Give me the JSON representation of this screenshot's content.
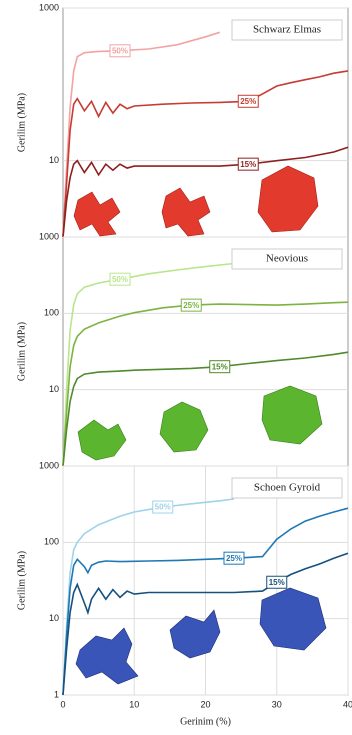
{
  "chart_data": [
    {
      "type": "line",
      "title": "Schwarz Elmas",
      "ylabel": "Gerilim (MPa)",
      "log_y": true,
      "grid": true,
      "xlim": [
        0,
        40
      ],
      "ylim": [
        1,
        1000
      ],
      "yticks": [
        10,
        1000
      ],
      "series": [
        {
          "name": "50%",
          "color": "#f2a3a3",
          "x": [
            0,
            0.5,
            1,
            1.5,
            2,
            3,
            5,
            8,
            12,
            16,
            20,
            22
          ],
          "values": [
            1,
            8,
            50,
            150,
            230,
            260,
            270,
            275,
            290,
            330,
            420,
            480
          ]
        },
        {
          "name": "25%",
          "color": "#c63b32",
          "x": [
            0,
            0.5,
            1,
            1.5,
            2,
            3,
            4,
            5,
            6,
            7,
            8,
            9,
            10,
            14,
            18,
            22,
            26,
            28,
            30,
            32,
            34,
            36,
            38,
            40
          ],
          "values": [
            1,
            5,
            25,
            55,
            65,
            45,
            60,
            38,
            58,
            42,
            55,
            48,
            52,
            55,
            57,
            58,
            60,
            75,
            95,
            105,
            115,
            125,
            140,
            150
          ]
        },
        {
          "name": "15%",
          "color": "#8e1f1f",
          "x": [
            0,
            0.5,
            1,
            1.5,
            2,
            3,
            4,
            5,
            6,
            7,
            8,
            9,
            10,
            14,
            18,
            22,
            26,
            30,
            34,
            38,
            40
          ],
          "values": [
            1,
            3,
            6,
            9,
            10,
            7,
            9.5,
            6.5,
            9,
            7.5,
            9,
            8,
            8.5,
            8.5,
            8.5,
            8.5,
            9,
            10,
            11,
            13,
            15
          ]
        }
      ]
    },
    {
      "type": "line",
      "title": "Neovious",
      "ylabel": "Gerilim (MPa)",
      "log_y": true,
      "grid": true,
      "xlim": [
        0,
        40
      ],
      "ylim": [
        1,
        1000
      ],
      "yticks": [
        10,
        100,
        1000
      ],
      "series": [
        {
          "name": "50%",
          "color": "#b9e58c",
          "x": [
            0,
            0.5,
            1,
            1.5,
            2,
            3,
            5,
            8,
            12,
            16,
            20,
            24
          ],
          "values": [
            1,
            10,
            60,
            130,
            180,
            220,
            250,
            280,
            330,
            370,
            410,
            450
          ]
        },
        {
          "name": "25%",
          "color": "#7cb342",
          "x": [
            0,
            0.5,
            1,
            1.5,
            2,
            3,
            5,
            8,
            10,
            14,
            18,
            22,
            26,
            30,
            34,
            38,
            40
          ],
          "values": [
            1,
            5,
            20,
            38,
            50,
            62,
            75,
            92,
            102,
            118,
            128,
            132,
            130,
            128,
            132,
            138,
            140
          ]
        },
        {
          "name": "15%",
          "color": "#4f8a2b",
          "x": [
            0,
            0.5,
            1,
            1.5,
            2,
            3,
            5,
            8,
            10,
            14,
            18,
            22,
            26,
            30,
            34,
            38,
            40
          ],
          "values": [
            1,
            3,
            7,
            11,
            14,
            16,
            17,
            17.5,
            18,
            18.5,
            19,
            20,
            22,
            24,
            26,
            29,
            31
          ]
        }
      ]
    },
    {
      "type": "line",
      "title": "Schoen Gyroid",
      "ylabel": "Gerilim (MPa)",
      "xlabel": "Gerinim (%)",
      "log_y": true,
      "grid": true,
      "xlim": [
        0,
        40
      ],
      "xticks": [
        0,
        10,
        20,
        30,
        40
      ],
      "ylim": [
        1,
        1000
      ],
      "yticks": [
        1,
        10,
        100,
        1000
      ],
      "series": [
        {
          "name": "50%",
          "color": "#9fd3ea",
          "x": [
            0,
            0.5,
            1,
            1.5,
            2,
            3,
            5,
            8,
            10,
            14,
            18,
            22,
            24
          ],
          "values": [
            1,
            8,
            40,
            80,
            100,
            130,
            170,
            220,
            250,
            290,
            320,
            350,
            370
          ]
        },
        {
          "name": "25%",
          "color": "#1f78b4",
          "x": [
            0,
            0.5,
            1,
            1.5,
            2,
            3,
            3.5,
            4,
            5,
            6,
            8,
            12,
            16,
            20,
            24,
            28,
            30,
            32,
            34,
            36,
            38,
            40
          ],
          "values": [
            1,
            6,
            25,
            50,
            60,
            48,
            40,
            50,
            55,
            57,
            56,
            57,
            58,
            60,
            62,
            65,
            110,
            150,
            190,
            220,
            250,
            280
          ]
        },
        {
          "name": "15%",
          "color": "#15507e",
          "x": [
            0,
            0.5,
            1,
            1.5,
            2,
            3,
            3.5,
            4,
            5,
            6,
            7,
            8,
            9,
            10,
            12,
            16,
            20,
            24,
            28,
            30,
            32,
            34,
            36,
            38,
            40
          ],
          "values": [
            1,
            4,
            12,
            22,
            28,
            16,
            12,
            18,
            25,
            18,
            24,
            19,
            23,
            21,
            22,
            22,
            22,
            22,
            23,
            30,
            38,
            45,
            52,
            62,
            72
          ]
        }
      ]
    }
  ]
}
